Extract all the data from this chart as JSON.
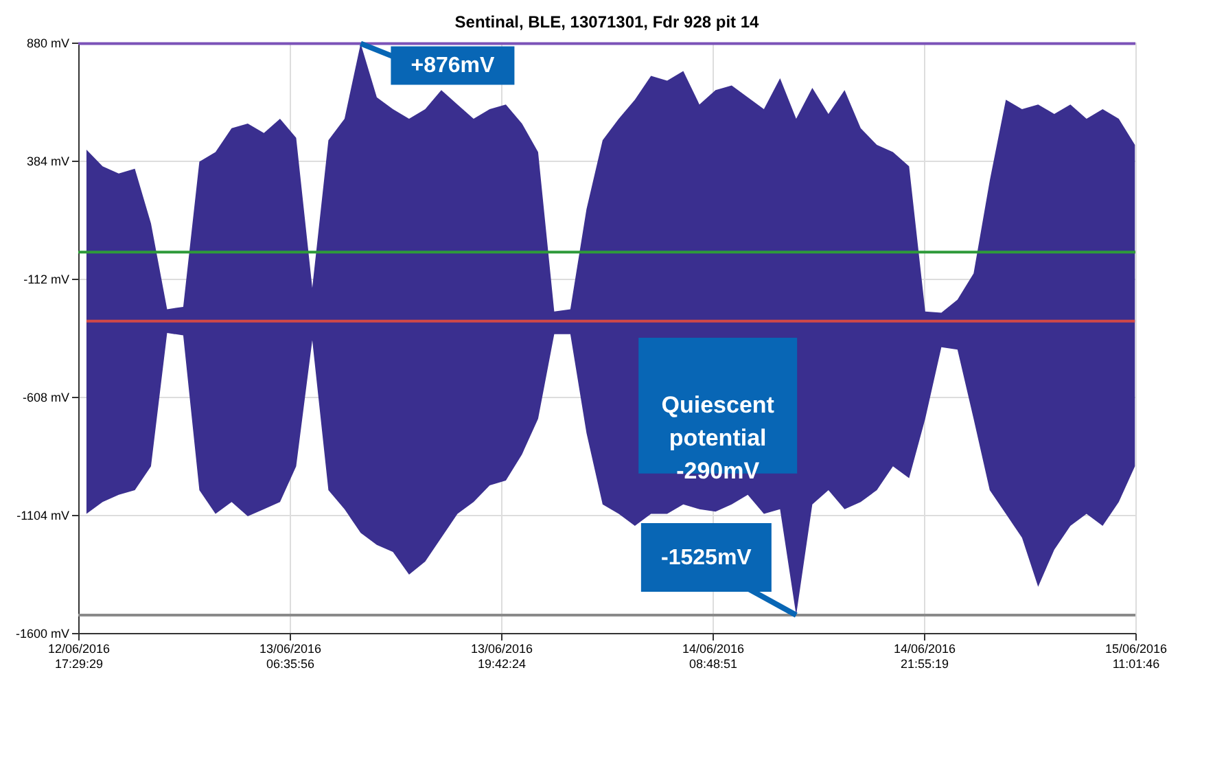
{
  "chart_data": {
    "type": "line",
    "title": "Sentinal, BLE, 13071301, Fdr 928 pit 14",
    "x": [
      "2016-06-12T18:00",
      "2016-06-12T19:00",
      "2016-06-12T20:00",
      "2016-06-12T21:00",
      "2016-06-12T22:00",
      "2016-06-12T23:00",
      "2016-06-13T00:00",
      "2016-06-13T01:00",
      "2016-06-13T02:00",
      "2016-06-13T03:00",
      "2016-06-13T04:00",
      "2016-06-13T05:00",
      "2016-06-13T06:00",
      "2016-06-13T07:00",
      "2016-06-13T08:00",
      "2016-06-13T09:00",
      "2016-06-13T10:00",
      "2016-06-13T11:00",
      "2016-06-13T12:00",
      "2016-06-13T13:00",
      "2016-06-13T14:00",
      "2016-06-13T15:00",
      "2016-06-13T16:00",
      "2016-06-13T17:00",
      "2016-06-13T18:00",
      "2016-06-13T19:00",
      "2016-06-13T20:00",
      "2016-06-13T21:00",
      "2016-06-13T22:00",
      "2016-06-13T23:00",
      "2016-06-14T00:00",
      "2016-06-14T01:00",
      "2016-06-14T02:00",
      "2016-06-14T03:00",
      "2016-06-14T04:00",
      "2016-06-14T05:00",
      "2016-06-14T06:00",
      "2016-06-14T07:00",
      "2016-06-14T08:00",
      "2016-06-14T09:00",
      "2016-06-14T10:00",
      "2016-06-14T11:00",
      "2016-06-14T12:00",
      "2016-06-14T13:00",
      "2016-06-14T14:00",
      "2016-06-14T15:00",
      "2016-06-14T16:00",
      "2016-06-14T17:00",
      "2016-06-14T18:00",
      "2016-06-14T19:00",
      "2016-06-14T20:00",
      "2016-06-14T21:00",
      "2016-06-14T22:00",
      "2016-06-14T23:00",
      "2016-06-15T00:00",
      "2016-06-15T01:00",
      "2016-06-15T02:00",
      "2016-06-15T03:00",
      "2016-06-15T04:00",
      "2016-06-15T05:00",
      "2016-06-15T06:00",
      "2016-06-15T07:00",
      "2016-06-15T08:00",
      "2016-06-15T09:00",
      "2016-06-15T10:00",
      "2016-06-15T11:00"
    ],
    "series": [
      {
        "color": "#d04848",
        "values": [
          -290,
          -290,
          -290,
          -290,
          -290,
          -290,
          -290,
          -290,
          -290,
          -290,
          -290,
          -290,
          -290,
          -290,
          -290,
          -290,
          -290,
          -290,
          -290,
          -290,
          -290,
          -290,
          -290,
          -290,
          -290,
          -290,
          -290,
          -290,
          -290,
          -290,
          -290,
          -290,
          -290,
          -290,
          -290,
          -290,
          -290,
          -290,
          -290,
          -290,
          -290,
          -290,
          -290,
          -290,
          -290,
          -290,
          -290,
          -290,
          -290,
          -290,
          -290,
          -290,
          -290,
          -290,
          -290,
          -290,
          -290,
          -290,
          -290,
          -290,
          -290,
          -290,
          -290,
          -290,
          -290,
          -290
        ],
        "upper": [
          430,
          360,
          330,
          350,
          120,
          -240,
          -230,
          380,
          420,
          520,
          540,
          500,
          560,
          480,
          -150,
          470,
          560,
          876,
          650,
          600,
          560,
          600,
          680,
          620,
          560,
          600,
          620,
          540,
          420,
          -250,
          -240,
          180,
          470,
          560,
          640,
          740,
          720,
          760,
          620,
          680,
          700,
          650,
          600,
          730,
          560,
          690,
          580,
          680,
          520,
          450,
          420,
          360,
          -250,
          -255,
          -200,
          -90,
          300,
          640,
          600,
          620,
          580,
          620,
          560,
          600,
          560,
          450
        ],
        "lower": [
          -1100,
          -1050,
          -1020,
          -1000,
          -900,
          -340,
          -350,
          -1000,
          -1100,
          -1050,
          -1110,
          -1080,
          -1050,
          -900,
          -370,
          -1000,
          -1080,
          -1180,
          -1230,
          -1260,
          -1355,
          -1300,
          -1200,
          -1100,
          -1050,
          -980,
          -960,
          -850,
          -700,
          -345,
          -345,
          -760,
          -1060,
          -1100,
          -1150,
          -1100,
          -1100,
          -1060,
          -1080,
          -1090,
          -1060,
          -1020,
          -1100,
          -1080,
          -1525,
          -1060,
          -1000,
          -1080,
          -1050,
          -1000,
          -900,
          -950,
          -700,
          -400,
          -410,
          -700,
          -1000,
          -1100,
          -1200,
          -1406,
          -1250,
          -1150,
          -1100,
          -1150,
          -1050,
          -900
        ]
      }
    ],
    "xlim": [
      "2016-06-12T17:29:29",
      "2016-06-15T11:01:46"
    ],
    "xticks": [
      {
        "value": "2016-06-12T17:29:29",
        "label": "12/06/2016 17:29:29"
      },
      {
        "value": "2016-06-13T06:35:56",
        "label": "13/06/2016 06:35:56"
      },
      {
        "value": "2016-06-13T19:42:24",
        "label": "13/06/2016 19:42:24"
      },
      {
        "value": "2016-06-14T08:48:51",
        "label": "14/06/2016 08:48:51"
      },
      {
        "value": "2016-06-14T21:55:19",
        "label": "14/06/2016 21:55:19"
      },
      {
        "value": "2016-06-15T11:01:46",
        "label": "15/06/2016 11:01:46"
      }
    ],
    "ylim": [
      -1600,
      880
    ],
    "yticks": [
      {
        "value": 880,
        "label": "880 mV"
      },
      {
        "value": 384,
        "label": "384 mV"
      },
      {
        "value": -112,
        "label": "-112 mV"
      },
      {
        "value": -608,
        "label": "-608 mV"
      },
      {
        "value": -1104,
        "label": "-1104 mV"
      },
      {
        "value": -1600,
        "label": "-1600 mV"
      }
    ],
    "grid": true,
    "ref_lines": [
      {
        "axis": "y",
        "value": 876,
        "color": "#7b52b8"
      },
      {
        "axis": "y",
        "value": 0,
        "color": "#2e9a3a"
      },
      {
        "axis": "y",
        "value": -1525,
        "color": "#8a8a8a"
      }
    ],
    "annotations": [
      {
        "text": "+876mV",
        "x": "2016-06-13T11:00",
        "y": 876
      },
      "Quiescent potential -290mV",
      {
        "text": "-1525mV",
        "x": "2016-06-14T14:00",
        "y": -1525
      }
    ]
  }
}
